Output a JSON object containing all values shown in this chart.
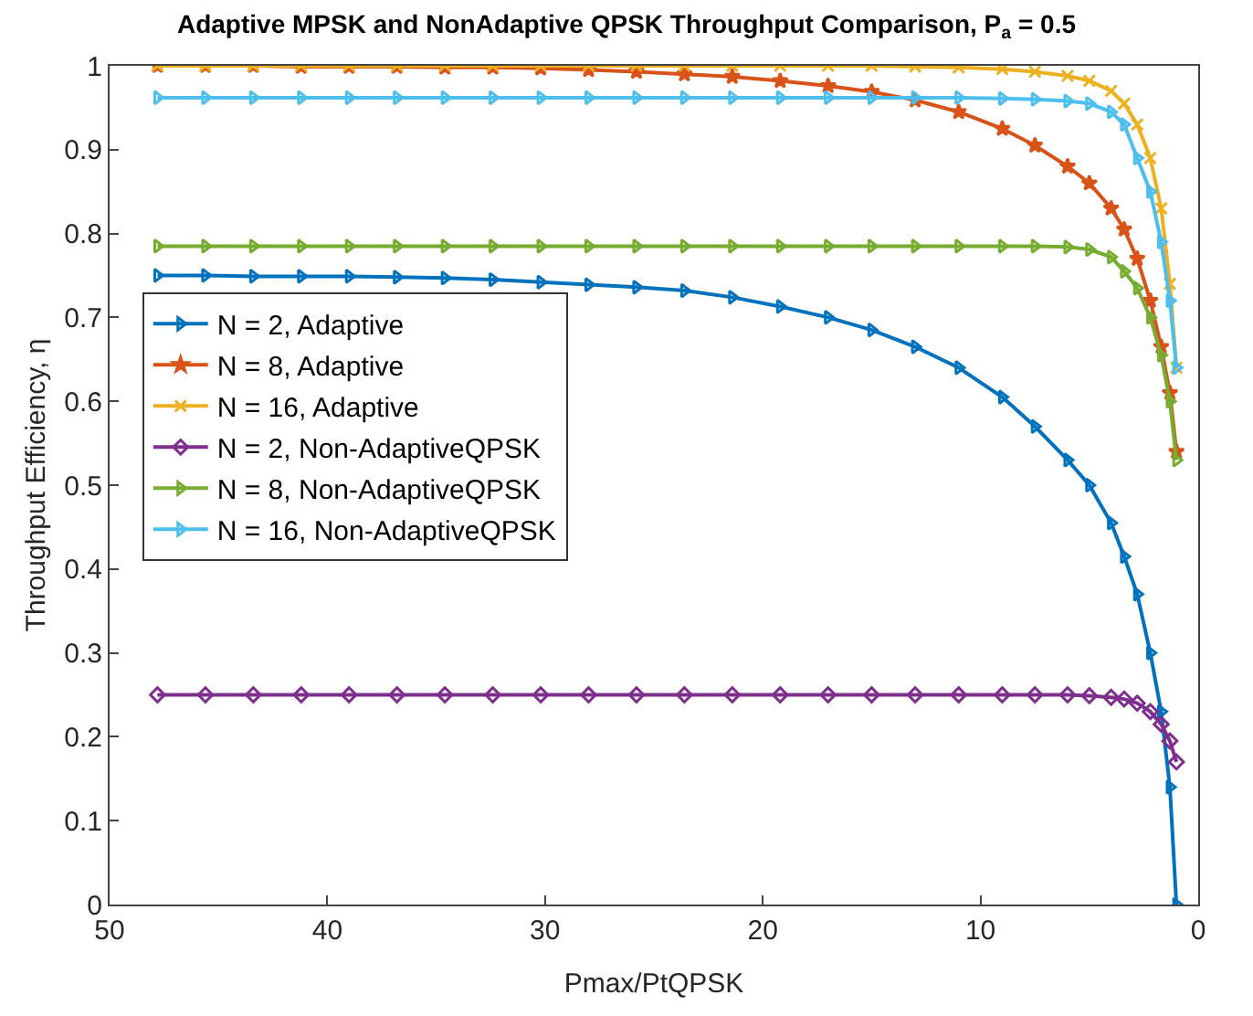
{
  "chart_data": {
    "type": "line",
    "title": "Adaptive MPSK and NonAdaptive QPSK Throughput Comparison, P$_{a}$ = 0.5",
    "xlabel": "Pmax/PtQPSK",
    "ylabel": "Throughput Efficiency, η",
    "x": [
      47.8,
      45.6,
      43.4,
      41.2,
      39,
      36.8,
      34.6,
      32.4,
      30.2,
      28,
      25.8,
      23.6,
      21.4,
      19.2,
      17,
      15,
      13,
      11,
      9,
      7.5,
      6,
      5,
      4,
      3.4,
      2.8,
      2.2,
      1.7,
      1.3,
      1.0
    ],
    "series": [
      {
        "name": "N = 2, Adaptive",
        "color": "#0072bd",
        "marker": "triangle",
        "values": [
          0.75,
          0.75,
          0.749,
          0.749,
          0.749,
          0.748,
          0.747,
          0.745,
          0.742,
          0.739,
          0.736,
          0.732,
          0.724,
          0.713,
          0.7,
          0.685,
          0.665,
          0.64,
          0.605,
          0.57,
          0.53,
          0.5,
          0.455,
          0.415,
          0.37,
          0.3,
          0.23,
          0.14,
          0.0
        ]
      },
      {
        "name": "N = 8, Adaptive",
        "color": "#d95319",
        "marker": "star",
        "values": [
          1.0,
          1.0,
          1.0,
          0.999,
          0.999,
          0.999,
          0.998,
          0.998,
          0.997,
          0.995,
          0.993,
          0.99,
          0.987,
          0.982,
          0.976,
          0.969,
          0.959,
          0.945,
          0.925,
          0.905,
          0.88,
          0.86,
          0.83,
          0.805,
          0.77,
          0.72,
          0.665,
          0.61,
          0.54
        ]
      },
      {
        "name": "N = 16, Adaptive",
        "color": "#edb120",
        "marker": "cross",
        "values": [
          1.0,
          1.0,
          1.0,
          1.0,
          1.0,
          1.0,
          1.0,
          1.0,
          1.0,
          1.0,
          1.0,
          1.0,
          1.0,
          1.0,
          1.0,
          1.0,
          0.999,
          0.998,
          0.996,
          0.993,
          0.988,
          0.982,
          0.97,
          0.955,
          0.93,
          0.89,
          0.83,
          0.74,
          0.64
        ]
      },
      {
        "name": "N = 2, Non-AdaptiveQPSK",
        "color": "#7e2f8e",
        "marker": "diamond",
        "values": [
          0.25,
          0.25,
          0.25,
          0.25,
          0.25,
          0.25,
          0.25,
          0.25,
          0.25,
          0.25,
          0.25,
          0.25,
          0.25,
          0.25,
          0.25,
          0.25,
          0.25,
          0.25,
          0.25,
          0.25,
          0.25,
          0.249,
          0.247,
          0.245,
          0.24,
          0.23,
          0.215,
          0.195,
          0.17
        ]
      },
      {
        "name": "N = 8, Non-AdaptiveQPSK",
        "color": "#77ac30",
        "marker": "triangle",
        "values": [
          0.785,
          0.785,
          0.785,
          0.785,
          0.785,
          0.785,
          0.785,
          0.785,
          0.785,
          0.785,
          0.785,
          0.785,
          0.785,
          0.785,
          0.785,
          0.785,
          0.785,
          0.785,
          0.785,
          0.785,
          0.784,
          0.781,
          0.772,
          0.755,
          0.735,
          0.7,
          0.655,
          0.6,
          0.53
        ]
      },
      {
        "name": "N = 16, Non-AdaptiveQPSK",
        "color": "#4dbeee",
        "marker": "triangle",
        "values": [
          0.962,
          0.962,
          0.962,
          0.962,
          0.962,
          0.962,
          0.962,
          0.962,
          0.962,
          0.962,
          0.962,
          0.962,
          0.962,
          0.962,
          0.962,
          0.962,
          0.962,
          0.962,
          0.961,
          0.96,
          0.958,
          0.955,
          0.945,
          0.93,
          0.89,
          0.85,
          0.79,
          0.72,
          0.64
        ]
      }
    ],
    "xlim": [
      50,
      0
    ],
    "xticks": [
      50,
      40,
      30,
      20,
      10,
      0
    ],
    "ylim": [
      0,
      1
    ],
    "yticks": [
      0,
      0.1,
      0.2,
      0.3,
      0.4,
      0.5,
      0.6,
      0.7,
      0.8,
      0.9,
      1
    ],
    "legend": "left"
  }
}
